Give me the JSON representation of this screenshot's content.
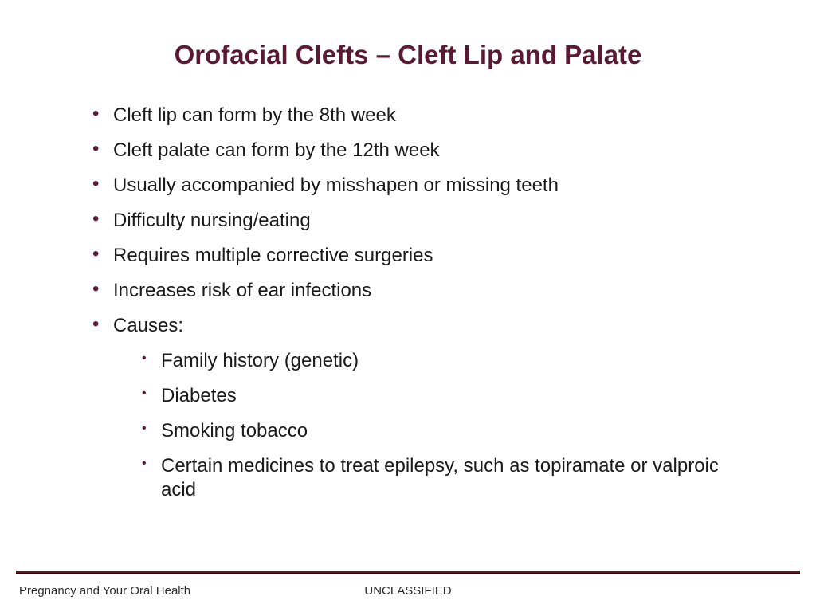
{
  "colors": {
    "title": "#5a1a33",
    "bullet": "#5a1a33",
    "body_text": "#1a1a1a",
    "footer_text": "#2a2a2a",
    "rule_outer": "#000000",
    "rule_inner": "#6b0f24",
    "background": "#ffffff"
  },
  "typography": {
    "title_fontsize": 33,
    "body_fontsize": 24,
    "sub_fontsize": 24,
    "footer_fontsize": 15
  },
  "title": "Orofacial Clefts – Cleft Lip and Palate",
  "bullets": [
    {
      "text": "Cleft lip can form by the 8th week"
    },
    {
      "text": "Cleft palate can form by the 12th week"
    },
    {
      "text": "Usually accompanied by misshapen or missing teeth"
    },
    {
      "text": "Difficulty nursing/eating"
    },
    {
      "text": "Requires multiple corrective surgeries"
    },
    {
      "text": "Increases risk of ear infections"
    },
    {
      "text": "Causes:",
      "children": [
        "Family history (genetic)",
        "Diabetes",
        "Smoking tobacco",
        "Certain medicines to treat epilepsy, such as topiramate or valproic acid"
      ]
    }
  ],
  "footer": {
    "left": "Pregnancy and Your Oral Health",
    "center": "UNCLASSIFIED"
  }
}
